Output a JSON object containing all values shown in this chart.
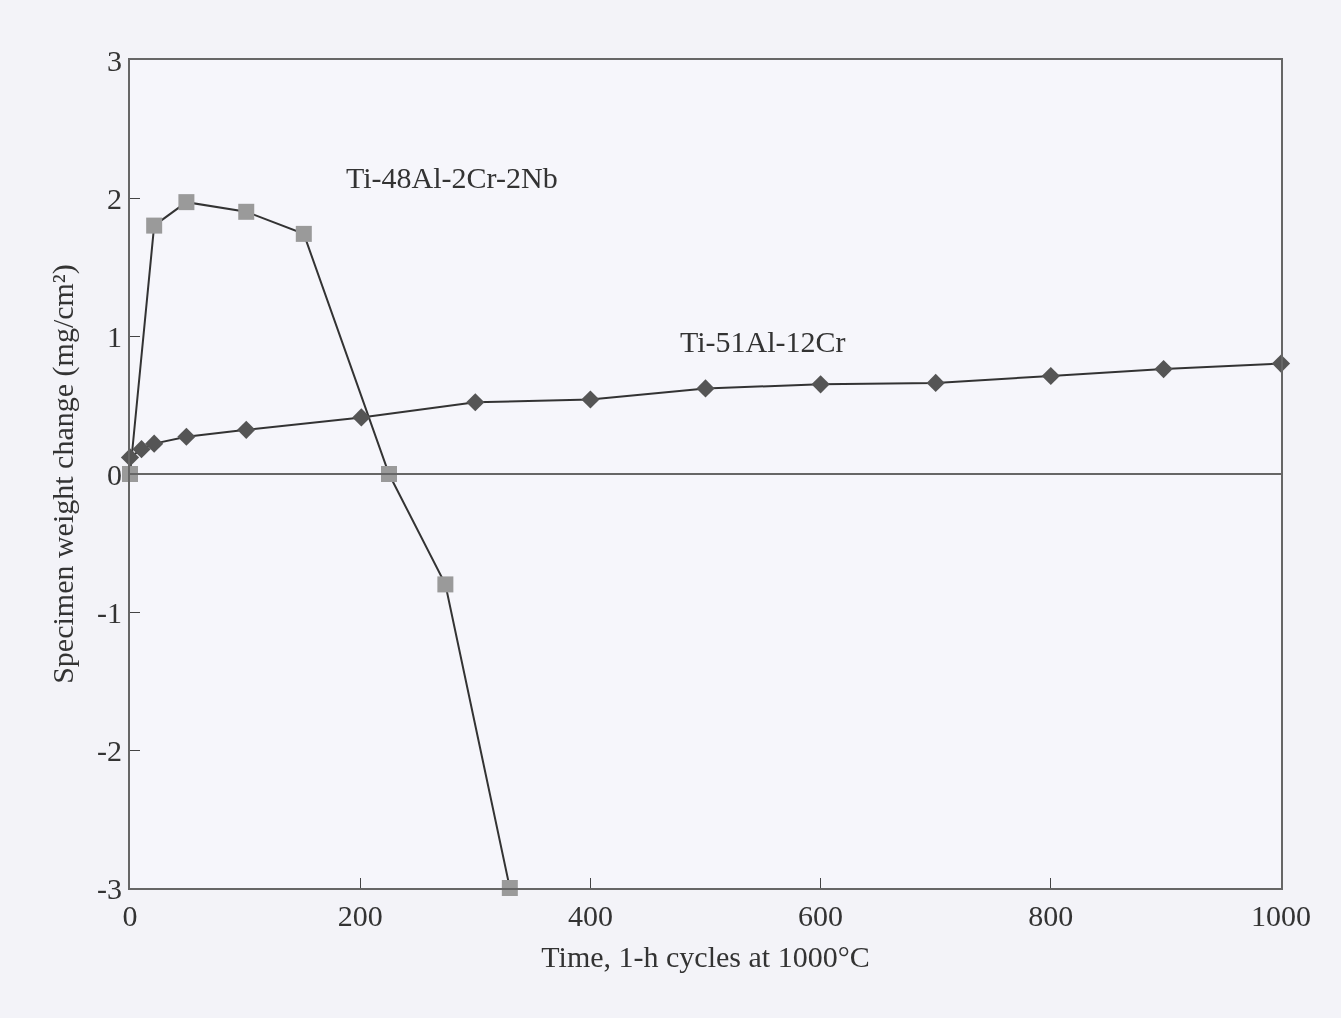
{
  "chart_data": {
    "type": "line",
    "xlabel": "Time, 1-h cycles at 1000°C",
    "ylabel": "Specimen weight change (mg/cm²)",
    "xlim": [
      0,
      1000
    ],
    "xticks": [
      0,
      200,
      400,
      600,
      800,
      1000
    ],
    "ylim": [
      -3,
      3
    ],
    "yticks": [
      -3,
      -2,
      -1,
      0,
      1,
      2,
      3
    ],
    "legend": false,
    "ref_lines": [
      {
        "axis": "y",
        "value": 0
      }
    ],
    "series": [
      {
        "name": "Ti-48Al-2Cr-2Nb",
        "color": "#9a9a9a",
        "marker": "square",
        "x": [
          0,
          21,
          49,
          101,
          151,
          225,
          274,
          330
        ],
        "values": [
          0,
          1.8,
          1.97,
          1.9,
          1.74,
          0,
          -0.8,
          -3
        ]
      },
      {
        "name": "Ti-51Al-12Cr",
        "color": "#555555",
        "marker": "diamond",
        "x": [
          0,
          10,
          21,
          49,
          101,
          201,
          300,
          400,
          500,
          600,
          700,
          800,
          898,
          1000
        ],
        "values": [
          0.12,
          0.18,
          0.22,
          0.27,
          0.32,
          0.41,
          0.52,
          0.54,
          0.62,
          0.65,
          0.66,
          0.71,
          0.76,
          0.8
        ]
      }
    ]
  }
}
